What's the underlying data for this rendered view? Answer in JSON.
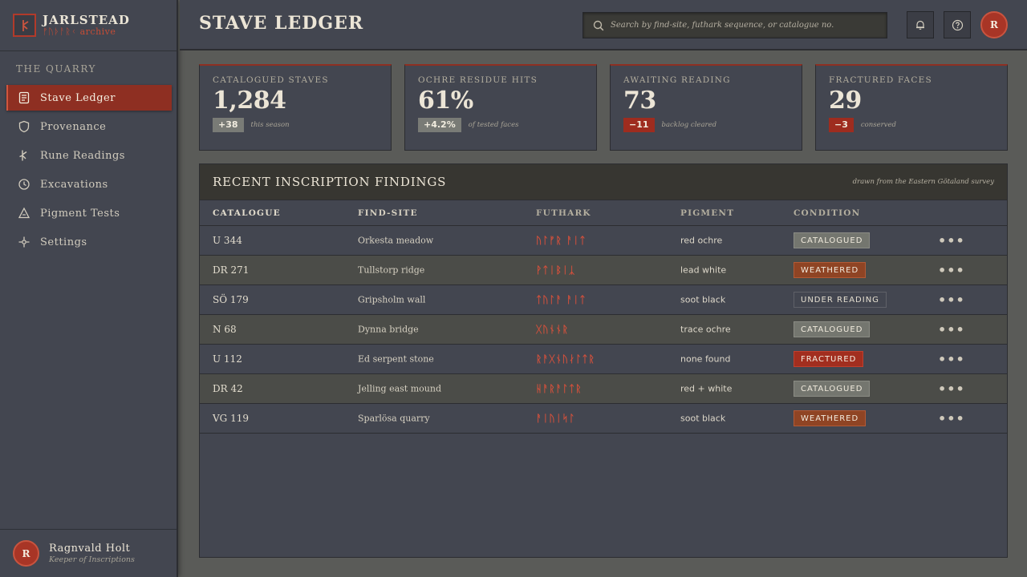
{
  "brand": {
    "title": "JARLSTEAD",
    "subtitle": "ᚠᚢᚦᚨᚱᚲ archive"
  },
  "sidebar": {
    "section_label": "THE QUARRY",
    "items": [
      {
        "label": "Stave Ledger",
        "icon": "ledger-icon",
        "active": true
      },
      {
        "label": "Provenance",
        "icon": "shield-icon",
        "active": false
      },
      {
        "label": "Rune Readings",
        "icon": "rune-icon",
        "active": false
      },
      {
        "label": "Excavations",
        "icon": "clock-icon",
        "active": false
      },
      {
        "label": "Pigment Tests",
        "icon": "flask-icon",
        "active": false
      },
      {
        "label": "Settings",
        "icon": "crosshair-icon",
        "active": false
      }
    ],
    "user": {
      "initial": "R",
      "name": "Ragnvald Holt",
      "role": "Keeper of Inscriptions"
    }
  },
  "header": {
    "title": "STAVE LEDGER",
    "search_placeholder": "Search by find-site, futhark sequence, or catalogue no.",
    "avatar_initial": "R"
  },
  "stats": [
    {
      "label": "CATALOGUED STAVES",
      "value": "1,284",
      "delta": "+38",
      "trend": "pos",
      "note": "this season"
    },
    {
      "label": "OCHRE RESIDUE HITS",
      "value": "61%",
      "delta": "+4.2%",
      "trend": "pos",
      "note": "of tested faces"
    },
    {
      "label": "AWAITING READING",
      "value": "73",
      "delta": "−11",
      "trend": "neg",
      "note": "backlog cleared"
    },
    {
      "label": "FRACTURED FACES",
      "value": "29",
      "delta": "−3",
      "trend": "neg",
      "note": "conserved"
    }
  ],
  "findings": {
    "title": "RECENT INSCRIPTION FINDINGS",
    "note": "drawn from the Eastern Götaland survey",
    "columns": [
      "CATALOGUE",
      "FIND-SITE",
      "FUTHARK",
      "PIGMENT",
      "CONDITION"
    ],
    "rows": [
      {
        "catalogue": "U 344",
        "site": "Orkesta meadow",
        "futhark": "ᚢᛚᚠᚱ ᚨᛁᛏ",
        "pigment": "red ochre",
        "condition": "CATALOGUED",
        "kind": "cat"
      },
      {
        "catalogue": "DR 271",
        "site": "Tullstorp ridge",
        "futhark": "ᚹᛏᛁᛒᛁᛣ",
        "pigment": "lead white",
        "condition": "WEATHERED",
        "kind": "wea"
      },
      {
        "catalogue": "SÖ 179",
        "site": "Gripsholm wall",
        "futhark": "ᛏᚢᛚᚨ ᚨᛁᛏ",
        "pigment": "soot black",
        "condition": "UNDER READING",
        "kind": "und"
      },
      {
        "catalogue": "N 68",
        "site": "Dynna bridge",
        "futhark": "ᚷᚢᚾᚾᚱ",
        "pigment": "trace ochre",
        "condition": "CATALOGUED",
        "kind": "cat"
      },
      {
        "catalogue": "U 112",
        "site": "Ed serpent stone",
        "futhark": "ᚱᚨᚷᚾᚢᛅᛚᛏᚱ",
        "pigment": "none found",
        "condition": "FRACTURED",
        "kind": "fra"
      },
      {
        "catalogue": "DR 42",
        "site": "Jelling east mound",
        "futhark": "ᚺᚨᚱᚨᛚᛏᚱ",
        "pigment": "red + white",
        "condition": "CATALOGUED",
        "kind": "cat"
      },
      {
        "catalogue": "VG 119",
        "site": "Sparlösa quarry",
        "futhark": "ᚨᛁᚢᛁᛋᛚ",
        "pigment": "soot black",
        "condition": "WEATHERED",
        "kind": "wea"
      }
    ]
  },
  "colors": {
    "accent": "#8e2f22",
    "rune": "#d1503c",
    "panel": "#434650",
    "background": "#5a5b58"
  }
}
